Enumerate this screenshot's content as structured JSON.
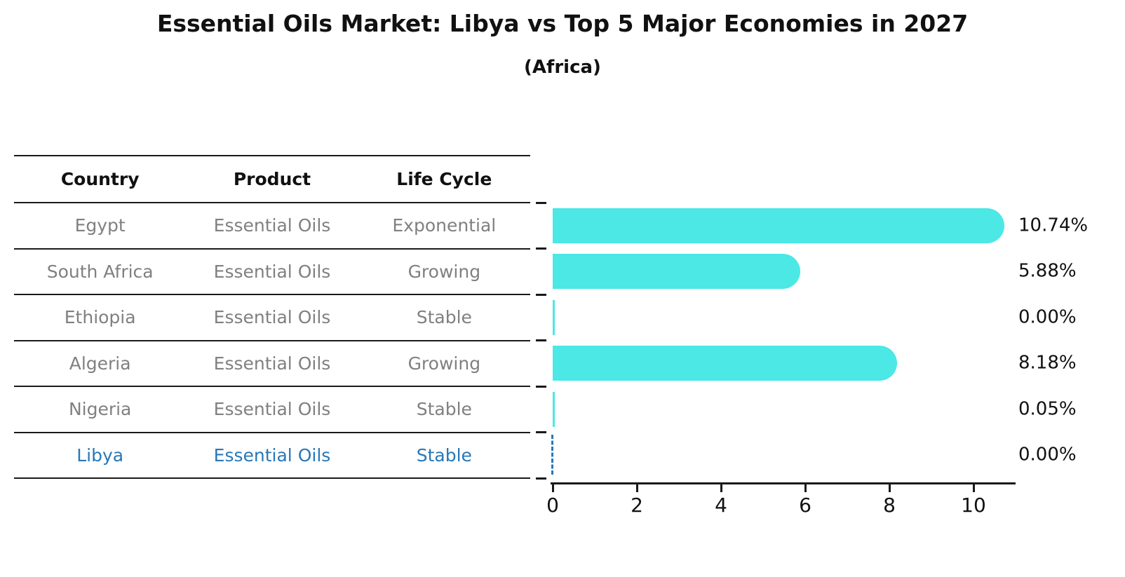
{
  "title": "Essential Oils Market: Libya vs Top 5 Major Economies in 2027",
  "subtitle": "(Africa)",
  "table": {
    "headers": [
      "Country",
      "Product",
      "Life Cycle"
    ],
    "rows": [
      {
        "country": "Egypt",
        "product": "Essential Oils",
        "life_cycle": "Exponential",
        "highlight": false
      },
      {
        "country": "South Africa",
        "product": "Essential Oils",
        "life_cycle": "Growing",
        "highlight": false
      },
      {
        "country": "Ethiopia",
        "product": "Essential Oils",
        "life_cycle": "Stable",
        "highlight": false
      },
      {
        "country": "Algeria",
        "product": "Essential Oils",
        "life_cycle": "Growing",
        "highlight": false
      },
      {
        "country": "Nigeria",
        "product": "Essential Oils",
        "life_cycle": "Stable",
        "highlight": false
      },
      {
        "country": "Libya",
        "product": "Essential Oils",
        "life_cycle": "Stable",
        "highlight": true
      }
    ]
  },
  "chart_data": {
    "type": "bar",
    "orientation": "horizontal",
    "title": "Essential Oils Market: Libya vs Top 5 Major Economies in 2027 (Africa)",
    "categories": [
      "Egypt",
      "South Africa",
      "Ethiopia",
      "Algeria",
      "Nigeria",
      "Libya"
    ],
    "values": [
      10.74,
      5.88,
      0.0,
      8.18,
      0.05,
      0.0
    ],
    "value_labels": [
      "10.74%",
      "5.88%",
      "0.00%",
      "8.18%",
      "0.05%",
      "0.00%"
    ],
    "xlim": [
      0,
      11.0
    ],
    "xticks": [
      0,
      2,
      4,
      6,
      8,
      10
    ],
    "highlight_index": 5,
    "legend": "none",
    "grid": false
  },
  "colors": {
    "bar": "#4BE8E6",
    "highlight": "#2878B8",
    "muted_text": "#808080",
    "text": "#111111",
    "line": "#1a1a1a"
  }
}
